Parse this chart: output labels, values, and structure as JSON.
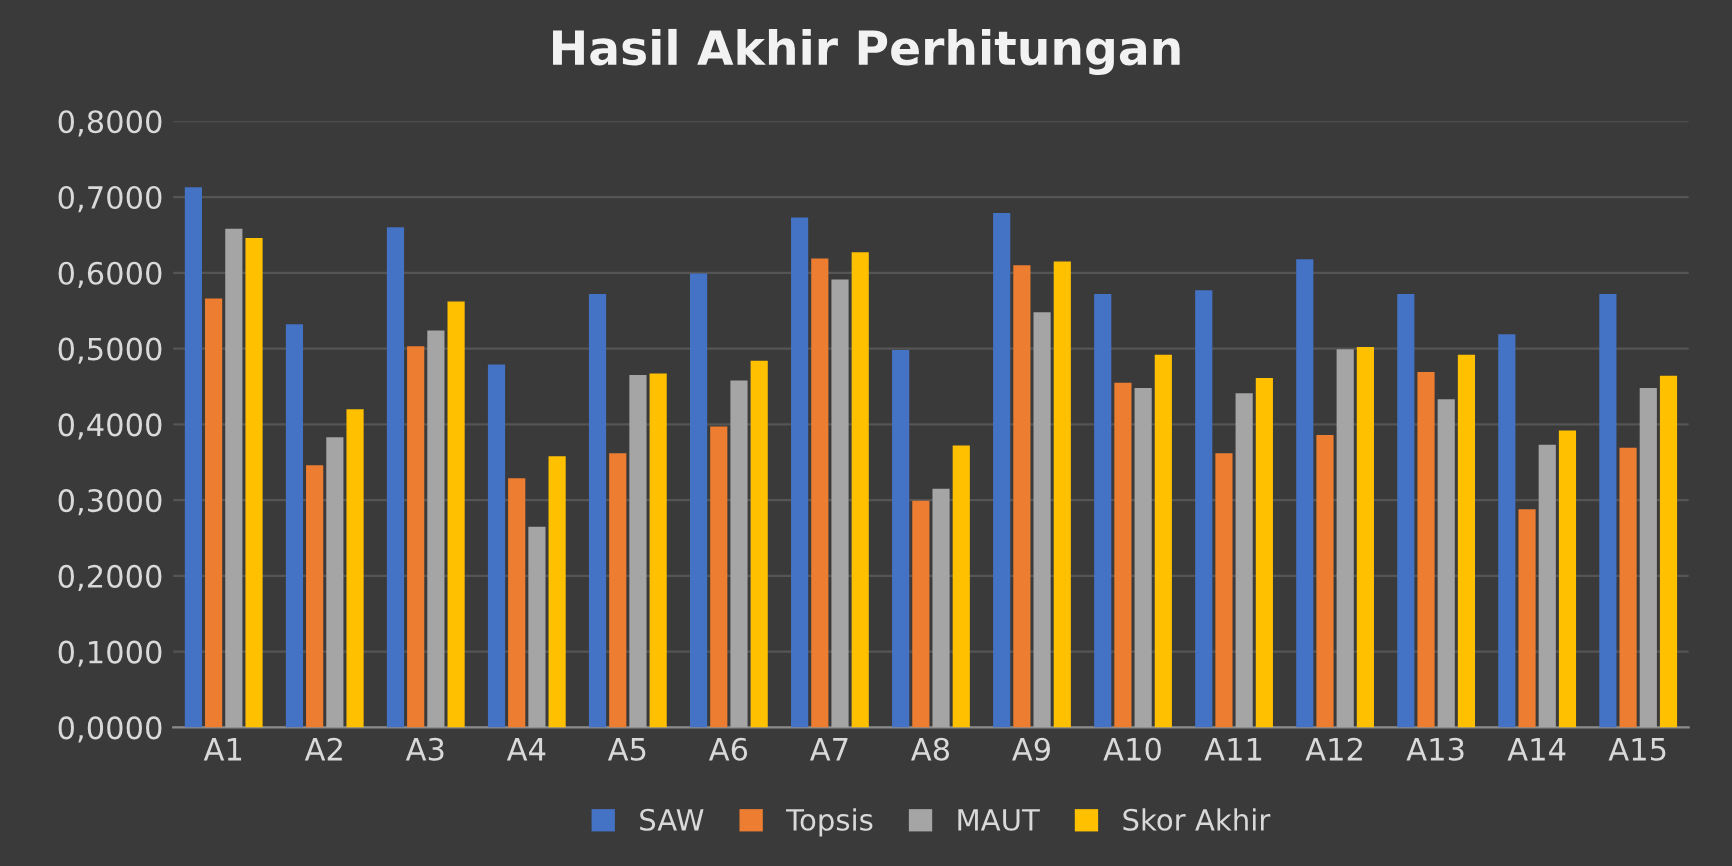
{
  "chart_data": {
    "type": "bar",
    "title": "Hasil Akhir Perhitungan",
    "categories": [
      "A1",
      "A2",
      "A3",
      "A4",
      "A5",
      "A6",
      "A7",
      "A8",
      "A9",
      "A10",
      "A11",
      "A12",
      "A13",
      "A14",
      "A15"
    ],
    "series": [
      {
        "name": "SAW",
        "color": "#4472c4",
        "values": [
          0.713,
          0.532,
          0.66,
          0.479,
          0.572,
          0.599,
          0.673,
          0.498,
          0.679,
          0.572,
          0.577,
          0.618,
          0.572,
          0.519,
          0.572
        ]
      },
      {
        "name": "Topsis",
        "color": "#ed7d31",
        "values": [
          0.566,
          0.346,
          0.503,
          0.329,
          0.362,
          0.397,
          0.619,
          0.299,
          0.61,
          0.455,
          0.362,
          0.386,
          0.469,
          0.288,
          0.369
        ]
      },
      {
        "name": "MAUT",
        "color": "#a5a5a5",
        "values": [
          0.658,
          0.383,
          0.524,
          0.265,
          0.465,
          0.458,
          0.591,
          0.315,
          0.548,
          0.448,
          0.441,
          0.499,
          0.433,
          0.373,
          0.448
        ]
      },
      {
        "name": "Skor Akhir",
        "color": "#ffc000",
        "values": [
          0.646,
          0.42,
          0.562,
          0.358,
          0.467,
          0.484,
          0.627,
          0.372,
          0.615,
          0.492,
          0.461,
          0.502,
          0.492,
          0.392,
          0.464
        ]
      }
    ],
    "ylim": [
      0,
      0.8
    ],
    "yticks": [
      {
        "value": 0,
        "label": "0,0000"
      },
      {
        "value": 0.1,
        "label": "0,1000"
      },
      {
        "value": 0.2,
        "label": "0,2000"
      },
      {
        "value": 0.3,
        "label": "0,3000"
      },
      {
        "value": 0.4,
        "label": "0,4000"
      },
      {
        "value": 0.5,
        "label": "0,5000"
      },
      {
        "value": 0.6,
        "label": "0,6000"
      },
      {
        "value": 0.7,
        "label": "0,7000"
      },
      {
        "value": 0.8,
        "label": "0,8000"
      }
    ],
    "grid": "y",
    "legend": "bottom"
  }
}
